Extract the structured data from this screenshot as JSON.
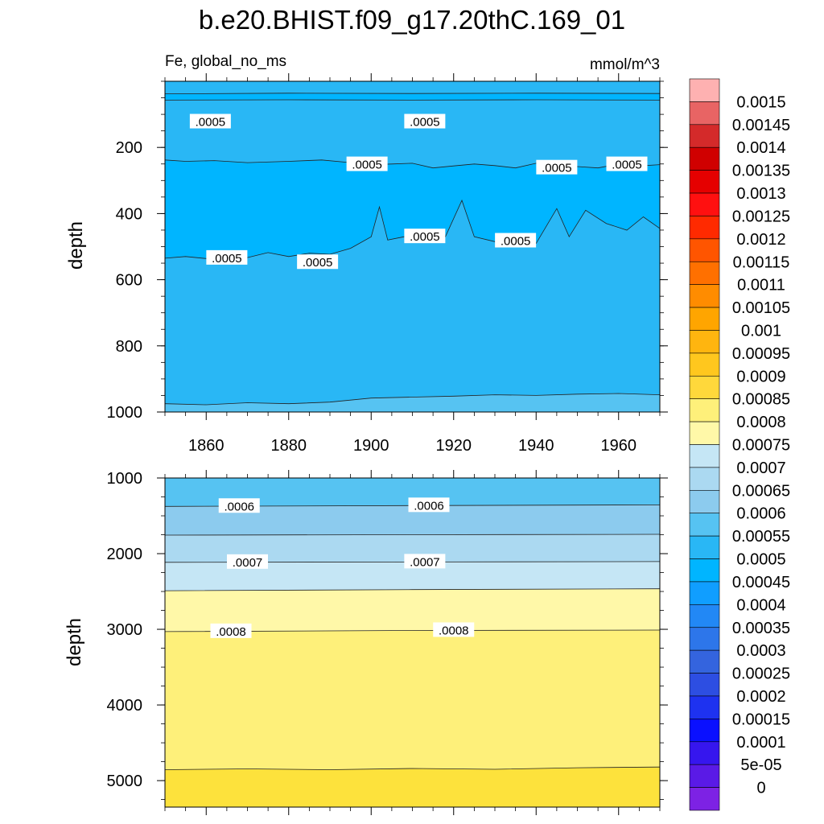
{
  "title": "b.e20.BHIST.f09_g17.20thC.169_01",
  "chart_data": [
    {
      "type": "contour",
      "panel": "upper",
      "left_label": "Fe, global_no_ms",
      "right_label": "mmol/m^3",
      "ylabel": "depth",
      "xlabel": "",
      "xlim": [
        1850,
        1970
      ],
      "ylim": [
        1000,
        0
      ],
      "x_ticks": [
        "1860",
        "1880",
        "1900",
        "1920",
        "1940",
        "1960"
      ],
      "y_ticks": [
        "200",
        "400",
        "600",
        "800",
        "1000"
      ],
      "grid": false,
      "contour_lines": [
        {
          "level": 0.0005,
          "depth_profile": [
            [
              1850,
              38
            ],
            [
              1880,
              36
            ],
            [
              1910,
              37
            ],
            [
              1940,
              36
            ],
            [
              1970,
              37
            ]
          ]
        },
        {
          "level": 0.00045,
          "depth_profile": [
            [
              1850,
              57
            ],
            [
              1880,
              56
            ],
            [
              1910,
              57
            ],
            [
              1940,
              56
            ],
            [
              1970,
              57
            ]
          ]
        },
        {
          "level": 0.0005,
          "depth_profile": [
            [
              1850,
              238
            ],
            [
              1855,
              242
            ],
            [
              1862,
              240
            ],
            [
              1870,
              246
            ],
            [
              1880,
              242
            ],
            [
              1888,
              238
            ],
            [
              1895,
              246
            ],
            [
              1900,
              252
            ],
            [
              1905,
              250
            ],
            [
              1910,
              248
            ],
            [
              1915,
              262
            ],
            [
              1920,
              256
            ],
            [
              1925,
              250
            ],
            [
              1930,
              255
            ],
            [
              1935,
              262
            ],
            [
              1940,
              248
            ],
            [
              1945,
              265
            ],
            [
              1950,
              258
            ],
            [
              1955,
              262
            ],
            [
              1960,
              250
            ],
            [
              1965,
              256
            ],
            [
              1970,
              252
            ]
          ]
        },
        {
          "level": 0.0005,
          "depth_profile": [
            [
              1850,
              535
            ],
            [
              1855,
              530
            ],
            [
              1860,
              536
            ],
            [
              1865,
              527
            ],
            [
              1870,
              533
            ],
            [
              1875,
              518
            ],
            [
              1880,
              530
            ],
            [
              1885,
              520
            ],
            [
              1890,
              523
            ],
            [
              1895,
              505
            ],
            [
              1900,
              470
            ],
            [
              1902,
              380
            ],
            [
              1904,
              480
            ],
            [
              1908,
              470
            ],
            [
              1913,
              455
            ],
            [
              1918,
              470
            ],
            [
              1922,
              360
            ],
            [
              1925,
              470
            ],
            [
              1930,
              485
            ],
            [
              1934,
              470
            ],
            [
              1940,
              490
            ],
            [
              1945,
              385
            ],
            [
              1948,
              470
            ],
            [
              1952,
              390
            ],
            [
              1957,
              430
            ],
            [
              1962,
              450
            ],
            [
              1966,
              410
            ],
            [
              1970,
              445
            ]
          ]
        },
        {
          "level": 0.00055,
          "depth_profile": [
            [
              1850,
              975
            ],
            [
              1860,
              978
            ],
            [
              1870,
              972
            ],
            [
              1880,
              975
            ],
            [
              1890,
              970
            ],
            [
              1900,
              958
            ],
            [
              1910,
              955
            ],
            [
              1920,
              952
            ],
            [
              1930,
              948
            ],
            [
              1940,
              950
            ],
            [
              1950,
              946
            ],
            [
              1960,
              944
            ],
            [
              1970,
              948
            ]
          ]
        }
      ],
      "fill_bands": [
        {
          "from_depth": 0,
          "to_depth": "contour-0",
          "value_color": "#29b7f5"
        },
        {
          "from_depth": "contour-0",
          "to_depth": "contour-1",
          "value_color": "#00b5ff"
        },
        {
          "from_depth": "contour-1",
          "to_depth": "contour-2",
          "value_color": "#29b7f5"
        },
        {
          "from_depth": "contour-2",
          "to_depth": "contour-3",
          "value_color": "#00b5ff"
        },
        {
          "from_depth": "contour-3",
          "to_depth": "contour-4",
          "value_color": "#29b7f5"
        },
        {
          "from_depth": "contour-4",
          "to_depth": 1000,
          "value_color": "#56c3f2"
        }
      ],
      "contour_labels": [
        {
          "text": ".0005",
          "x": 1861,
          "depth": 123
        },
        {
          "text": ".0005",
          "x": 1913,
          "depth": 123
        },
        {
          "text": ".0005",
          "x": 1899,
          "depth": 252
        },
        {
          "text": ".0005",
          "x": 1945,
          "depth": 262
        },
        {
          "text": ".0005",
          "x": 1962,
          "depth": 252
        },
        {
          "text": ".0005",
          "x": 1865,
          "depth": 535
        },
        {
          "text": ".0005",
          "x": 1887,
          "depth": 548
        },
        {
          "text": ".0005",
          "x": 1913,
          "depth": 470
        },
        {
          "text": ".0005",
          "x": 1935,
          "depth": 483
        }
      ]
    },
    {
      "type": "contour",
      "panel": "lower",
      "ylabel": "depth",
      "xlabel": "",
      "xlim": [
        1850,
        1970
      ],
      "ylim": [
        5350,
        1000
      ],
      "y_ticks": [
        "1000",
        "2000",
        "3000",
        "4000",
        "5000"
      ],
      "grid": false,
      "contour_lines": [
        {
          "level": 0.0006,
          "depth_profile": [
            [
              1850,
              1375
            ],
            [
              1910,
              1365
            ],
            [
              1970,
              1355
            ]
          ]
        },
        {
          "level": 0.00065,
          "depth_profile": [
            [
              1850,
              1755
            ],
            [
              1910,
              1750
            ],
            [
              1970,
              1745
            ]
          ]
        },
        {
          "level": 0.0007,
          "depth_profile": [
            [
              1850,
              2115
            ],
            [
              1910,
              2110
            ],
            [
              1970,
              2105
            ]
          ]
        },
        {
          "level": 0.00075,
          "depth_profile": [
            [
              1850,
              2490
            ],
            [
              1910,
              2475
            ],
            [
              1970,
              2465
            ]
          ]
        },
        {
          "level": 0.0008,
          "depth_profile": [
            [
              1850,
              3030
            ],
            [
              1910,
              3015
            ],
            [
              1970,
              3010
            ]
          ]
        },
        {
          "level": 0.00085,
          "depth_profile": [
            [
              1850,
              4855
            ],
            [
              1870,
              4845
            ],
            [
              1890,
              4855
            ],
            [
              1910,
              4840
            ],
            [
              1930,
              4850
            ],
            [
              1950,
              4830
            ],
            [
              1970,
              4820
            ]
          ]
        }
      ],
      "fill_bands": [
        {
          "from_depth": 1000,
          "to_depth": "contour-0",
          "value_color": "#56c3f2"
        },
        {
          "from_depth": "contour-0",
          "to_depth": "contour-1",
          "value_color": "#8ccbee"
        },
        {
          "from_depth": "contour-1",
          "to_depth": "contour-2",
          "value_color": "#abd9f1"
        },
        {
          "from_depth": "contour-2",
          "to_depth": "contour-3",
          "value_color": "#c5e6f5"
        },
        {
          "from_depth": "contour-3",
          "to_depth": "contour-4",
          "value_color": "#fff8a8"
        },
        {
          "from_depth": "contour-4",
          "to_depth": "contour-5",
          "value_color": "#fef07a"
        },
        {
          "from_depth": "contour-5",
          "to_depth": 5350,
          "value_color": "#fde23c"
        }
      ],
      "contour_labels": [
        {
          "text": ".0006",
          "x": 1868,
          "depth": 1375
        },
        {
          "text": ".0006",
          "x": 1914,
          "depth": 1365
        },
        {
          "text": ".0007",
          "x": 1870,
          "depth": 2115
        },
        {
          "text": ".0007",
          "x": 1913,
          "depth": 2110
        },
        {
          "text": ".0008",
          "x": 1866,
          "depth": 3030
        },
        {
          "text": ".0008",
          "x": 1920,
          "depth": 3015
        }
      ]
    }
  ],
  "colorbar": {
    "labels": [
      "0.0015",
      "0.00145",
      "0.0014",
      "0.00135",
      "0.0013",
      "0.00125",
      "0.0012",
      "0.00115",
      "0.0011",
      "0.00105",
      "0.001",
      "0.00095",
      "0.0009",
      "0.00085",
      "0.0008",
      "0.00075",
      "0.0007",
      "0.00065",
      "0.0006",
      "0.00055",
      "0.0005",
      "0.00045",
      "0.0004",
      "0.00035",
      "0.0003",
      "0.00025",
      "0.0002",
      "0.00015",
      "0.0001",
      "5e-05",
      "0"
    ],
    "colors": [
      "#feb1b1",
      "#e86464",
      "#d42a2a",
      "#d00000",
      "#e50000",
      "#ff1010",
      "#ff2a00",
      "#ff5500",
      "#ff7000",
      "#ff8c00",
      "#ffa500",
      "#ffb50f",
      "#ffc71e",
      "#ffd83b",
      "#fef07a",
      "#fff8a8",
      "#c5e6f5",
      "#abd9f1",
      "#8ccbee",
      "#56c3f2",
      "#29b7f5",
      "#00b5ff",
      "#109eff",
      "#2288f5",
      "#2d76ea",
      "#3464de",
      "#2d4ee2",
      "#1e32f0",
      "#0a10ff",
      "#3616ee",
      "#5a1ae6",
      "#7d22e4"
    ]
  }
}
